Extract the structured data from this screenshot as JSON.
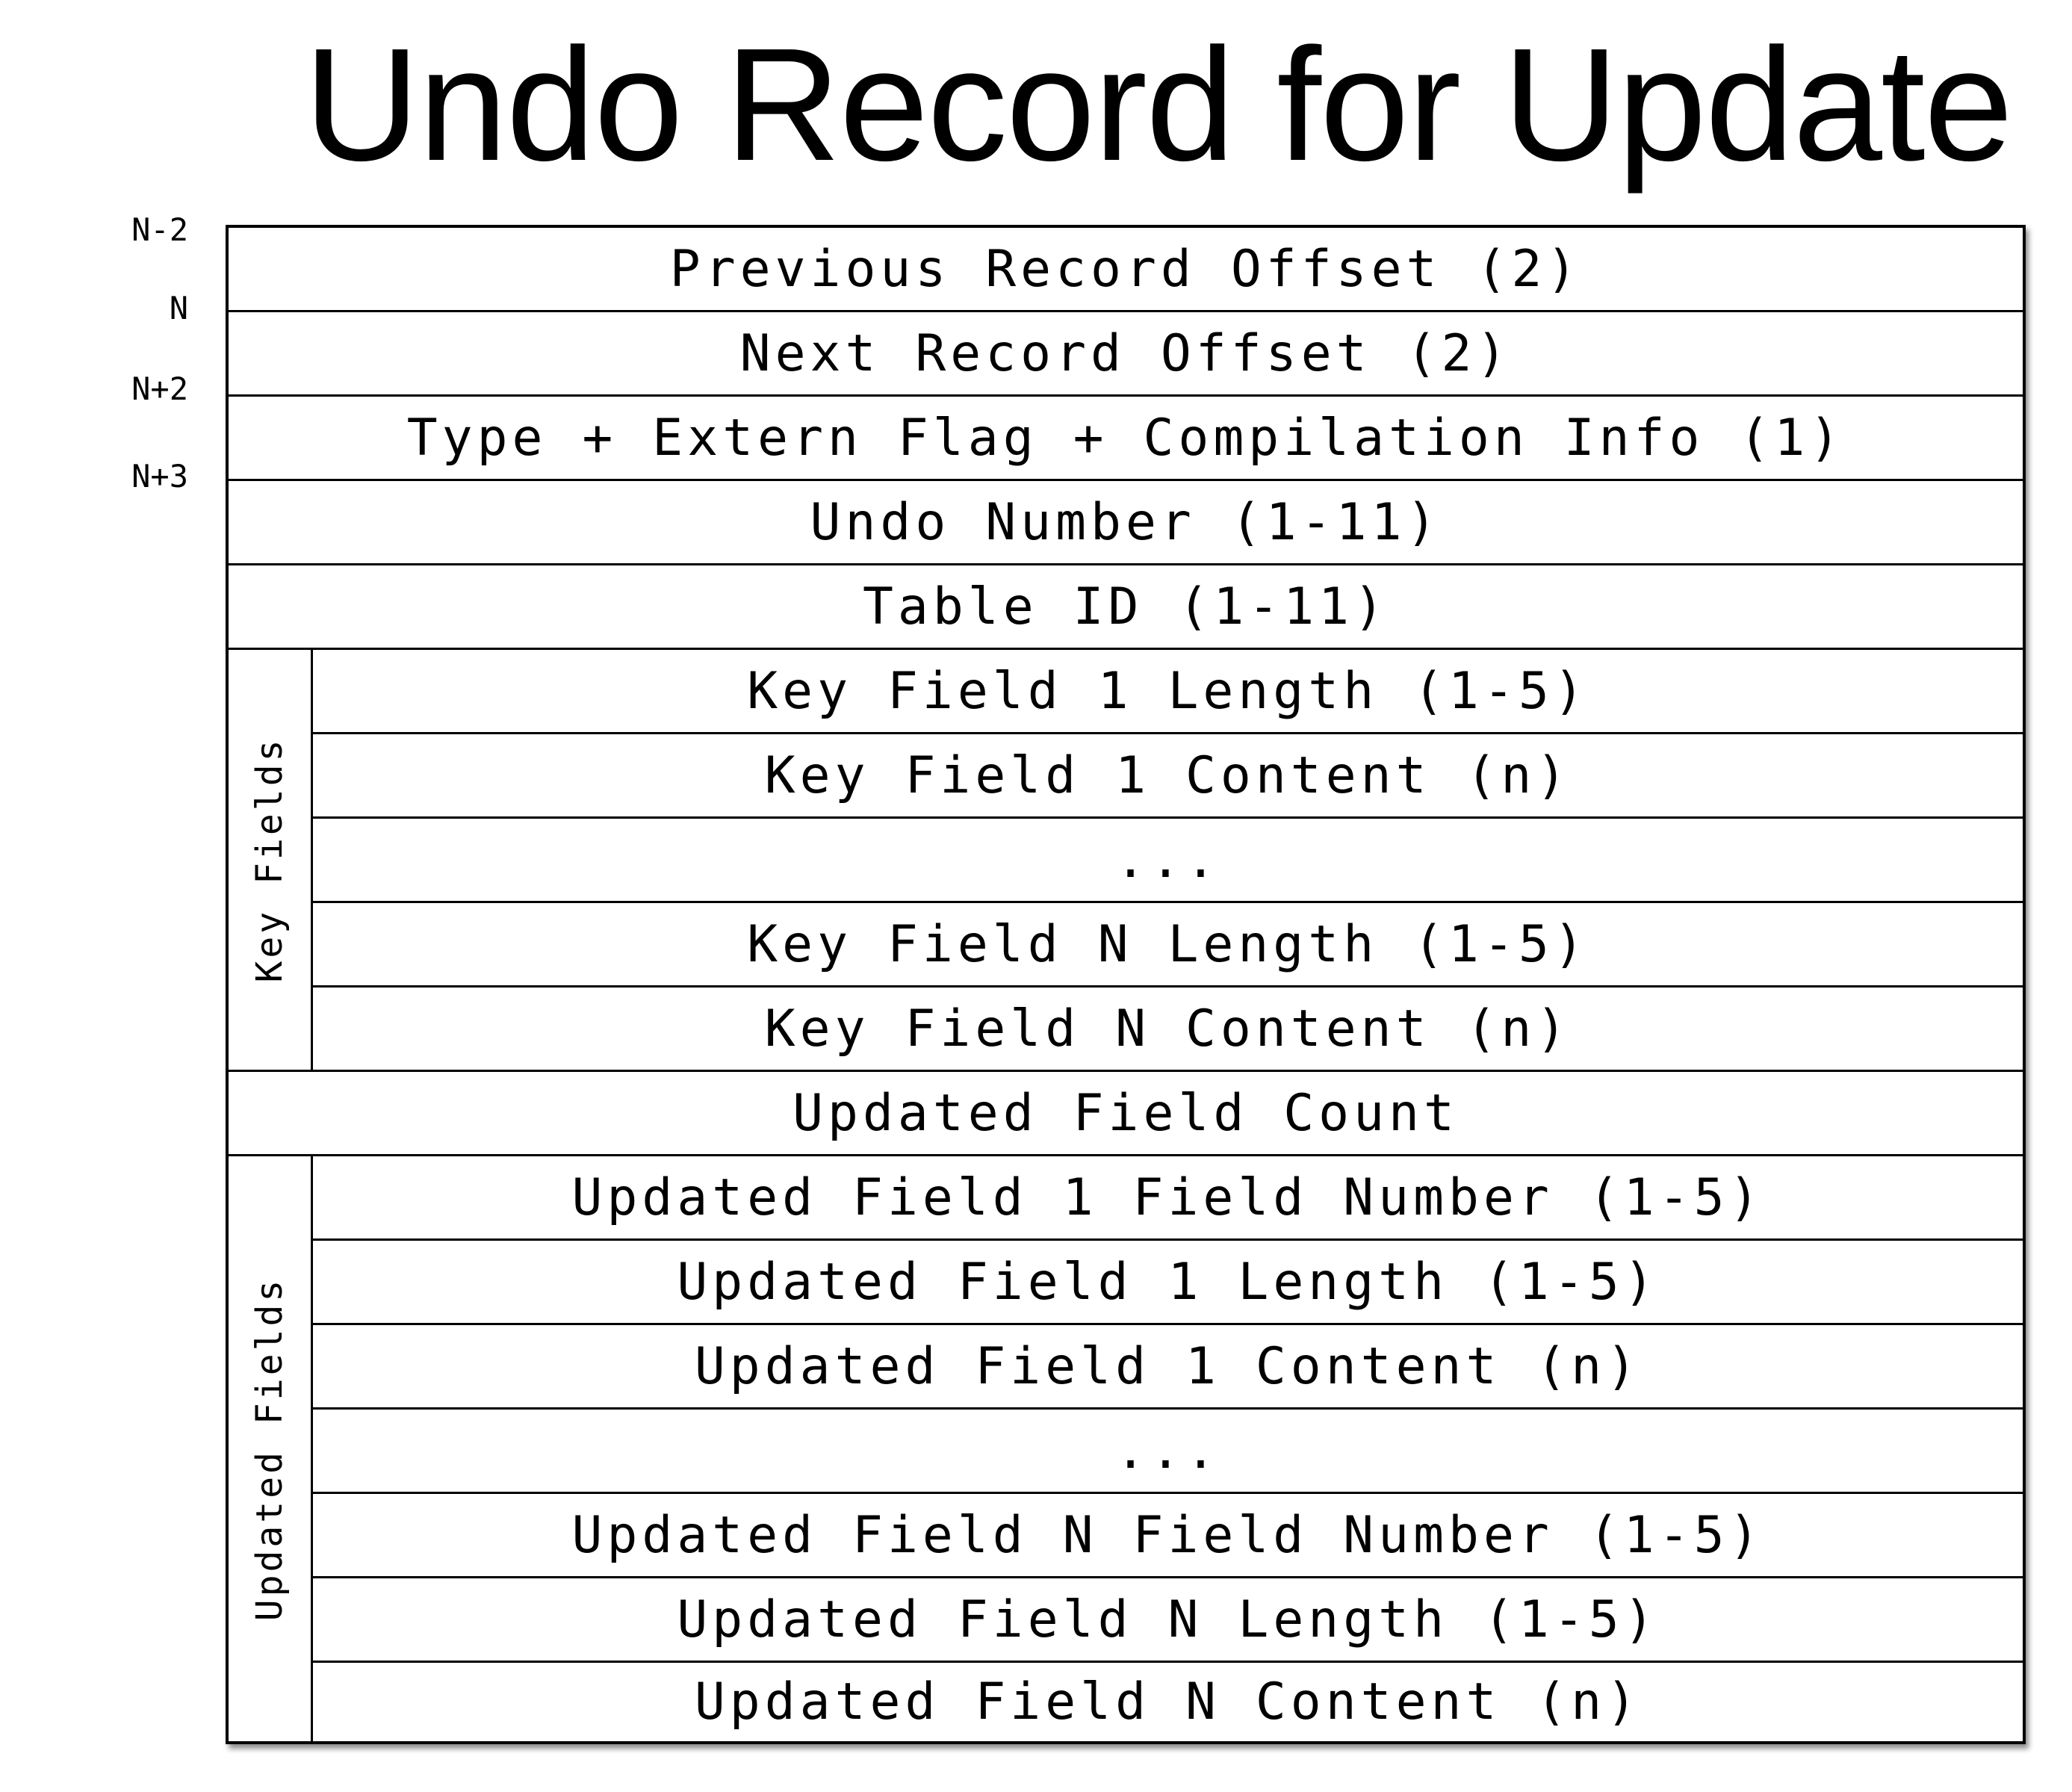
{
  "title": "Undo Record for Update",
  "offsets": [
    "N-2",
    "N",
    "N+2",
    "N+3"
  ],
  "rows": [
    "Previous Record Offset (2)",
    "Next Record Offset (2)",
    "Type + Extern Flag + Compilation Info (1)",
    "Undo Number (1-11)",
    "Table ID (1-11)",
    "Key Field 1 Length (1-5)",
    "Key Field 1 Content (n)",
    "...",
    "Key Field N Length (1-5)",
    "Key Field N Content (n)",
    "Updated Field Count",
    "Updated Field 1 Field Number (1-5)",
    "Updated Field 1 Length (1-5)",
    "Updated Field 1 Content (n)",
    "...",
    "Updated Field N Field Number (1-5)",
    "Updated Field N Length (1-5)",
    "Updated Field N Content (n)"
  ],
  "groups": {
    "key_fields": "Key Fields",
    "updated_fields": "Updated Fields"
  }
}
